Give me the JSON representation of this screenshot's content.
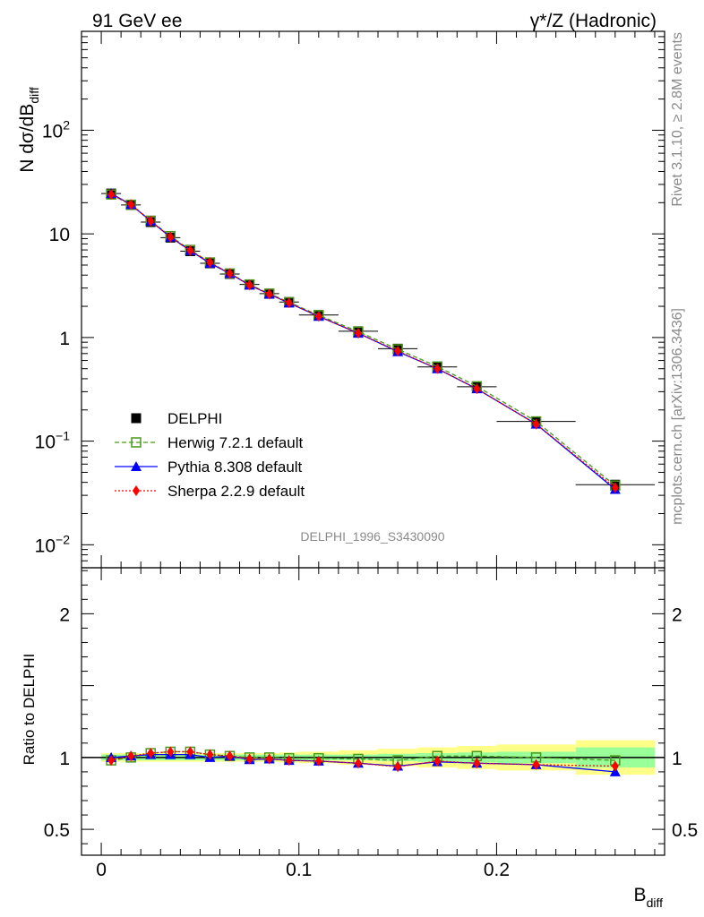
{
  "header": {
    "left": "91 GeV ee",
    "right": "γ*/Z (Hadronic)"
  },
  "side_texts": {
    "rivet": "Rivet 3.1.10, ≥ 2.8M events",
    "mcplots": "mcplots.cern.ch [arXiv:1306.3436]"
  },
  "watermark": "DELPHI_1996_S3430090",
  "axes": {
    "top_ylabel_main": "N dσ/dB",
    "top_ylabel_sub": "diff",
    "bottom_ylabel": "Ratio to DELPHI",
    "xlabel_main": "B",
    "xlabel_sub": "diff",
    "top_ticks": [
      {
        "value": 100,
        "base": "10",
        "exp": "2"
      },
      {
        "value": 10,
        "base": "10",
        "exp": ""
      },
      {
        "value": 1,
        "base": "1",
        "exp": ""
      },
      {
        "value": 0.1,
        "base": "10",
        "exp": "−1"
      },
      {
        "value": 0.01,
        "base": "10",
        "exp": "−2"
      }
    ],
    "ratio_ticks": [
      {
        "value": 2,
        "label": "2"
      },
      {
        "value": 1,
        "label": "1"
      },
      {
        "value": 0.5,
        "label": "0.5"
      }
    ],
    "x_ticks": [
      {
        "value": 0,
        "label": "0"
      },
      {
        "value": 0.1,
        "label": "0.1"
      },
      {
        "value": 0.2,
        "label": "0.2"
      }
    ]
  },
  "legend": [
    {
      "key": "data",
      "label": "DELPHI"
    },
    {
      "key": "herwig",
      "label": "Herwig 7.2.1 default"
    },
    {
      "key": "pythia",
      "label": "Pythia 8.308 default"
    },
    {
      "key": "sherpa",
      "label": "Sherpa 2.2.9 default"
    }
  ],
  "colors": {
    "data": "#000000",
    "herwig": "#4a9a1a",
    "pythia": "#0000ff",
    "sherpa": "#ff0000",
    "band_inner": "#99ff99",
    "band_outer": "#ffff88"
  },
  "chart_data": {
    "type": "line",
    "xlim": [
      -0.01,
      0.285
    ],
    "ylim_top": [
      0.006,
      900
    ],
    "ylim_ratio": [
      0.32,
      2.32
    ],
    "yscale_top": "log",
    "x": [
      0.005,
      0.015,
      0.025,
      0.035,
      0.045,
      0.055,
      0.065,
      0.075,
      0.085,
      0.095,
      0.11,
      0.13,
      0.15,
      0.17,
      0.19,
      0.22,
      0.26
    ],
    "x_bins": [
      [
        0,
        0.01
      ],
      [
        0.01,
        0.02
      ],
      [
        0.02,
        0.03
      ],
      [
        0.03,
        0.04
      ],
      [
        0.04,
        0.05
      ],
      [
        0.05,
        0.06
      ],
      [
        0.06,
        0.07
      ],
      [
        0.07,
        0.08
      ],
      [
        0.08,
        0.09
      ],
      [
        0.09,
        0.1
      ],
      [
        0.1,
        0.12
      ],
      [
        0.12,
        0.14
      ],
      [
        0.14,
        0.16
      ],
      [
        0.16,
        0.18
      ],
      [
        0.18,
        0.2
      ],
      [
        0.2,
        0.24
      ],
      [
        0.24,
        0.28
      ]
    ],
    "series": [
      {
        "name": "DELPHI",
        "key": "data",
        "values": [
          24.5,
          19.0,
          13.0,
          9.2,
          6.8,
          5.2,
          4.1,
          3.25,
          2.65,
          2.2,
          1.65,
          1.15,
          0.78,
          0.52,
          0.335,
          0.155,
          0.038
        ]
      },
      {
        "name": "Herwig 7.2.1 default",
        "key": "herwig",
        "values": [
          24.0,
          19.1,
          13.4,
          9.5,
          7.0,
          5.3,
          4.15,
          3.25,
          2.65,
          2.19,
          1.64,
          1.14,
          0.77,
          0.525,
          0.338,
          0.155,
          0.0373
        ],
        "ratio": [
          0.98,
          1.0,
          1.03,
          1.04,
          1.04,
          1.02,
          1.01,
          1.0,
          1.0,
          0.995,
          0.995,
          0.99,
          0.98,
          1.01,
          1.01,
          1.0,
          0.98
        ]
      },
      {
        "name": "Pythia 8.308 default",
        "key": "pythia",
        "values": [
          24.5,
          19.2,
          13.3,
          9.3,
          6.9,
          5.2,
          4.15,
          3.2,
          2.62,
          2.15,
          1.6,
          1.1,
          0.73,
          0.5,
          0.32,
          0.146,
          0.0342
        ],
        "ratio": [
          1.0,
          1.01,
          1.02,
          1.02,
          1.02,
          1.0,
          1.01,
          0.985,
          0.99,
          0.98,
          0.975,
          0.96,
          0.94,
          0.97,
          0.96,
          0.95,
          0.9
        ]
      },
      {
        "name": "Sherpa 2.2.9 default",
        "key": "sherpa",
        "values": [
          24.0,
          19.2,
          13.3,
          9.3,
          6.9,
          5.3,
          4.15,
          3.2,
          2.62,
          2.16,
          1.6,
          1.1,
          0.74,
          0.5,
          0.32,
          0.146,
          0.0356
        ],
        "ratio": [
          0.98,
          1.01,
          1.03,
          1.04,
          1.04,
          1.02,
          1.01,
          0.99,
          0.99,
          0.98,
          0.975,
          0.96,
          0.935,
          0.975,
          0.96,
          0.95,
          0.94
        ]
      }
    ],
    "uncertainty_inner": [
      0.02,
      0.02,
      0.02,
      0.02,
      0.02,
      0.02,
      0.02,
      0.02,
      0.02,
      0.02,
      0.02,
      0.02,
      0.025,
      0.03,
      0.035,
      0.04,
      0.07
    ],
    "uncertainty_outer": [
      0.03,
      0.03,
      0.03,
      0.03,
      0.03,
      0.03,
      0.03,
      0.03,
      0.03,
      0.035,
      0.04,
      0.05,
      0.06,
      0.07,
      0.08,
      0.09,
      0.12
    ]
  }
}
